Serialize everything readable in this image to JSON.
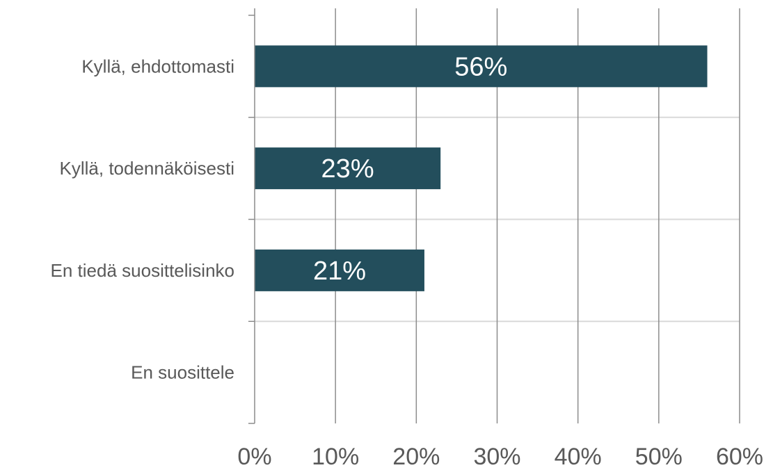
{
  "colors": {
    "bar": "#234e5c",
    "data_label": "#ffffff",
    "text": "#595959",
    "grid_vertical": "#8c8c8c",
    "grid_horizontal": "#d9d9d9",
    "axis": "#8c8c8c"
  },
  "chart_data": {
    "type": "bar",
    "orientation": "horizontal",
    "title": "",
    "xlabel": "",
    "ylabel": "",
    "categories": [
      "Kyllä, ehdottomasti",
      "Kyllä, todennäköisesti",
      "En tiedä suosittelisinko",
      "En suosittele"
    ],
    "values": [
      56,
      23,
      21,
      0
    ],
    "data_labels": [
      "56%",
      "23%",
      "21%",
      ""
    ],
    "xlim": [
      0,
      60
    ],
    "x_ticks": [
      0,
      10,
      20,
      30,
      40,
      50,
      60
    ],
    "x_tick_labels": [
      "0%",
      "10%",
      "20%",
      "30%",
      "40%",
      "50%",
      "60%"
    ],
    "grid": true,
    "legend": "none"
  }
}
